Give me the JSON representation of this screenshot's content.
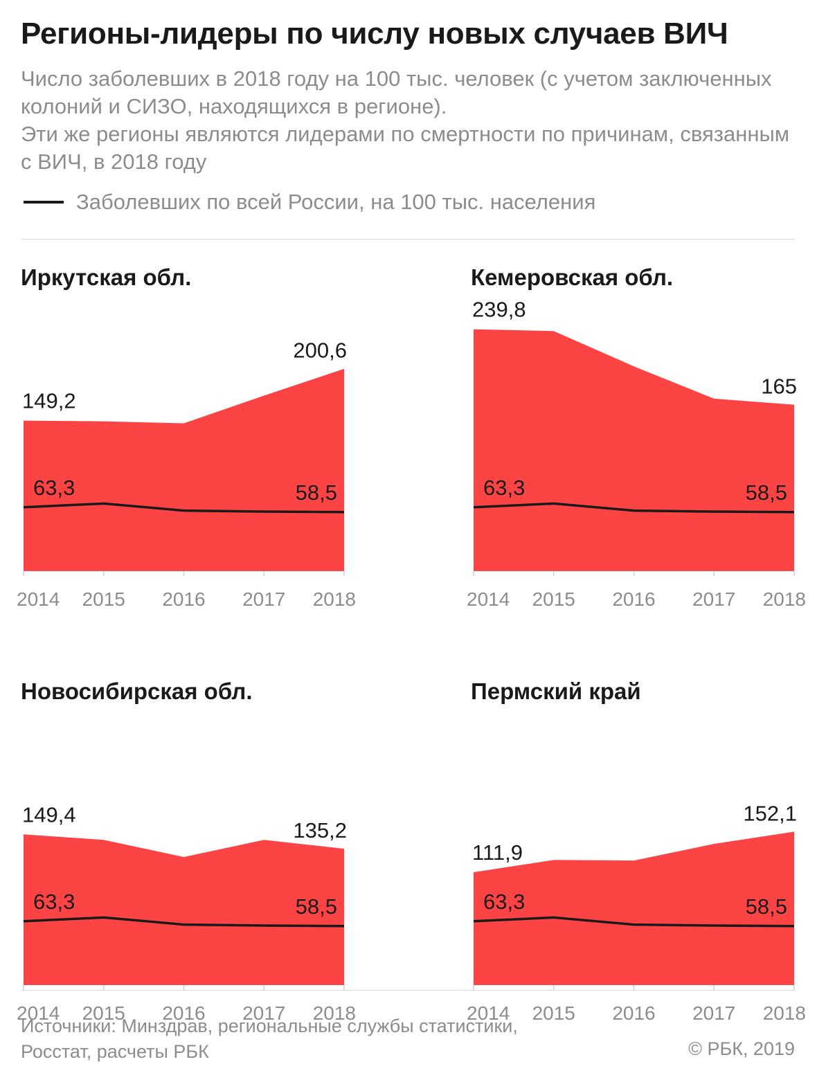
{
  "header": {
    "title": "Регионы-лидеры по числу новых случаев ВИЧ",
    "subtitle_line1": "Число заболевших в 2018 году на 100 тыс. человек (с учетом заключенных колоний и СИЗО, находящихся в регионе).",
    "subtitle_line2": "Эти же регионы являются лидерами по смертности по причинам, связанным с ВИЧ, в 2018 году",
    "legend_label": "Заболевших по всей России, на 100 тыс. населения"
  },
  "colors": {
    "area": "#fd4445",
    "line": "#1a1a1a",
    "axis_text": "#8c8c8c"
  },
  "chart_data": [
    {
      "type": "area",
      "title": "Иркутская обл.",
      "x": [
        "2014",
        "2015",
        "2016",
        "2017",
        "2018"
      ],
      "series": [
        {
          "name": "Иркутская обл.",
          "values": [
            149.2,
            148.5,
            146.5,
            174,
            200.6
          ],
          "labels": [
            "149,2",
            "",
            "",
            "",
            "200,6"
          ]
        },
        {
          "name": "Заболевших по всей России, на 100 тыс. населения",
          "values": [
            63.3,
            67,
            60,
            59,
            58.5
          ],
          "labels": [
            "63,3",
            "",
            "",
            "",
            "58,5"
          ]
        }
      ],
      "ylim": [
        0,
        240
      ]
    },
    {
      "type": "area",
      "title": "Кемеровская обл.",
      "x": [
        "2014",
        "2015",
        "2016",
        "2017",
        "2018"
      ],
      "series": [
        {
          "name": "Кемеровская обл.",
          "values": [
            239.8,
            238,
            203,
            171,
            165
          ],
          "labels": [
            "239,8",
            "",
            "",
            "",
            "165"
          ]
        },
        {
          "name": "Заболевших по всей России, на 100 тыс. населения",
          "values": [
            63.3,
            67,
            60,
            59,
            58.5
          ],
          "labels": [
            "63,3",
            "",
            "",
            "",
            "58,5"
          ]
        }
      ],
      "ylim": [
        0,
        240
      ]
    },
    {
      "type": "area",
      "title": "Новосибирская обл.",
      "x": [
        "2014",
        "2015",
        "2016",
        "2017",
        "2018"
      ],
      "series": [
        {
          "name": "Новосибирская обл.",
          "values": [
            149.4,
            144,
            127,
            144,
            135.2
          ],
          "labels": [
            "149,4",
            "",
            "",
            "",
            "135,2"
          ]
        },
        {
          "name": "Заболевших по всей России, на 100 тыс. населения",
          "values": [
            63.3,
            67,
            60,
            59,
            58.5
          ],
          "labels": [
            "63,3",
            "",
            "",
            "",
            "58,5"
          ]
        }
      ],
      "ylim": [
        0,
        240
      ]
    },
    {
      "type": "area",
      "title": "Пермский край",
      "x": [
        "2014",
        "2015",
        "2016",
        "2017",
        "2018"
      ],
      "series": [
        {
          "name": "Пермский край",
          "values": [
            111.9,
            124,
            123.5,
            140,
            152.1
          ],
          "labels": [
            "111,9",
            "",
            "",
            "",
            "152,1"
          ]
        },
        {
          "name": "Заболевших по всей России, на 100 тыс. населения",
          "values": [
            63.3,
            67,
            60,
            59,
            58.5
          ],
          "labels": [
            "63,3",
            "",
            "",
            "",
            "58,5"
          ]
        }
      ],
      "ylim": [
        0,
        240
      ]
    }
  ],
  "footer": {
    "source_line1": "Источники: Минздрав, региональные службы статистики,",
    "source_line2": "Росстат, расчеты РБК",
    "copyright": "© РБК, 2019"
  }
}
